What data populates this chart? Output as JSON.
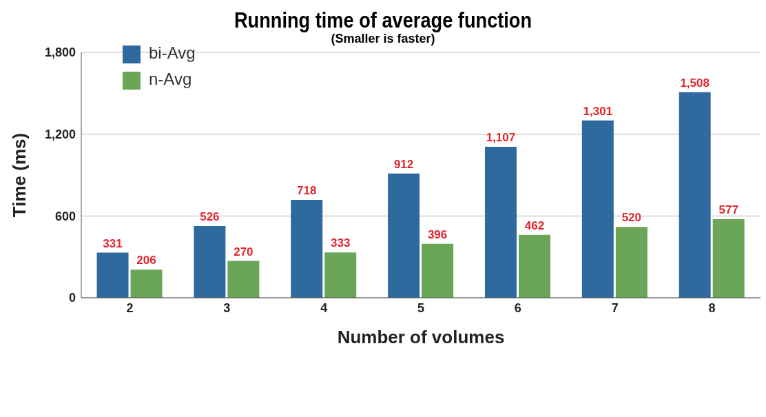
{
  "chart_data": {
    "type": "bar",
    "title": "Running time of average function",
    "subtitle": "(Smaller is faster)",
    "xlabel": "Number of volumes",
    "ylabel": "Time (ms)",
    "categories": [
      "2",
      "3",
      "4",
      "5",
      "6",
      "7",
      "8"
    ],
    "series": [
      {
        "name": "bi-Avg",
        "color": "#2e6a9e",
        "values": [
          331,
          526,
          718,
          912,
          1107,
          1301,
          1508
        ],
        "value_labels": [
          "331",
          "526",
          "718",
          "912",
          "1,107",
          "1,301",
          "1,508"
        ]
      },
      {
        "name": "n-Avg",
        "color": "#6aa558",
        "values": [
          206,
          270,
          333,
          396,
          462,
          520,
          577
        ],
        "value_labels": [
          "206",
          "270",
          "333",
          "396",
          "462",
          "520",
          "577"
        ]
      }
    ],
    "ylim": [
      0,
      1800
    ],
    "yticks": [
      0,
      600,
      {
        "value": 1200,
        "label": "1,200"
      },
      {
        "value": 1800,
        "label": "1,800"
      }
    ],
    "grid": "y",
    "legend": "top left"
  }
}
